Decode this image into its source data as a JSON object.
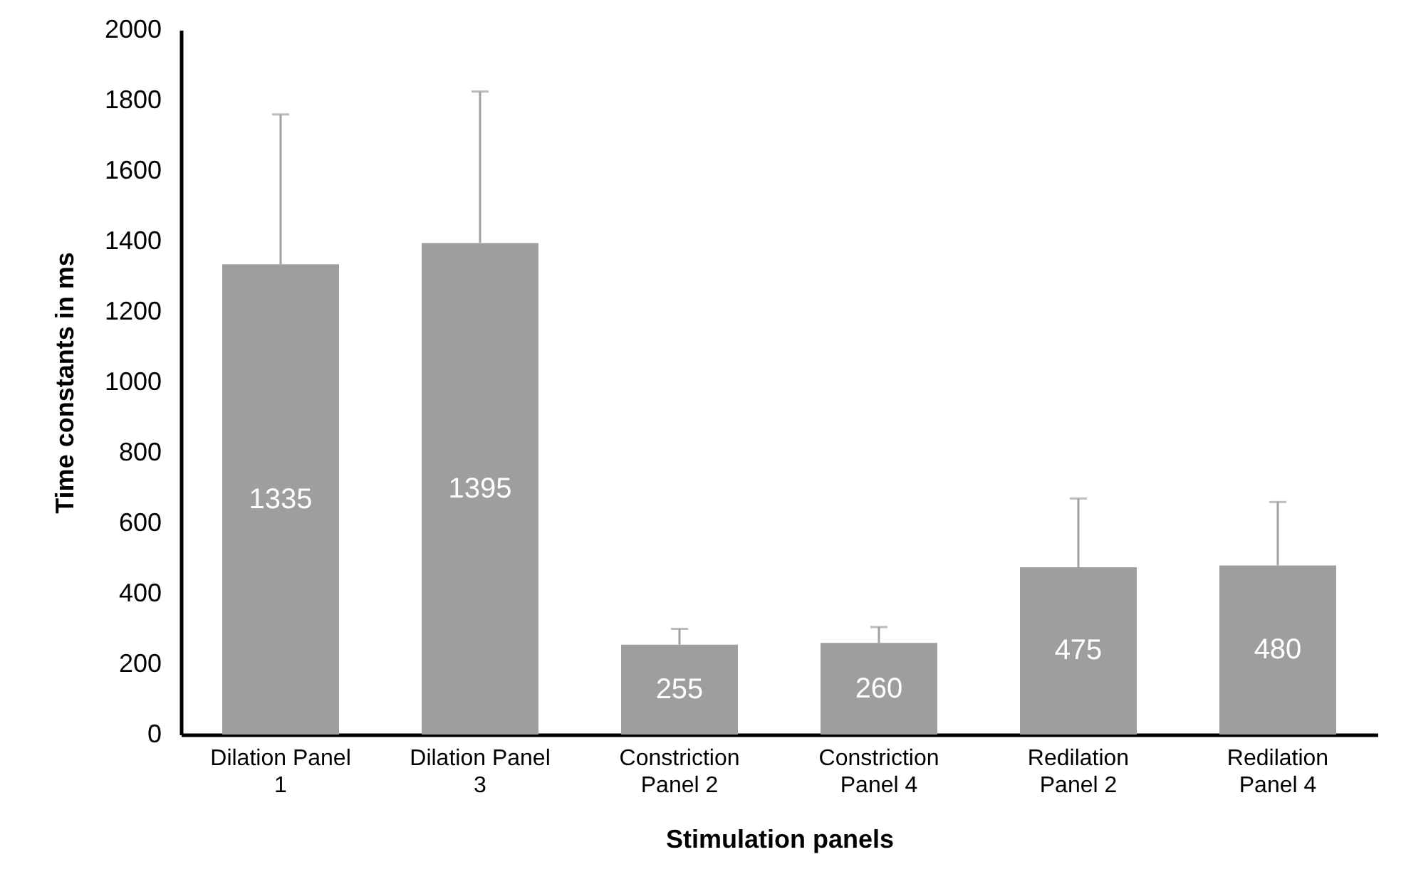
{
  "chart_data": {
    "type": "bar",
    "xlabel": "Stimulation panels",
    "ylabel": "Time constants in ms",
    "categories": [
      "Dilation Panel 1",
      "Dilation Panel 3",
      "Constriction Panel 2",
      "Constriction Panel 4",
      "Redilation Panel 2",
      "Redilation Panel 4"
    ],
    "values": [
      1335,
      1395,
      255,
      260,
      475,
      480
    ],
    "errors": [
      [
        1335,
        1760
      ],
      [
        1395,
        1825
      ],
      [
        255,
        300
      ],
      [
        260,
        305
      ],
      [
        475,
        670
      ],
      [
        480,
        660
      ]
    ],
    "color": "#9e9e9e",
    "data_labels": true,
    "grid": false,
    "ylim": [
      0,
      2000
    ],
    "yticks": [
      0,
      200,
      400,
      600,
      800,
      1000,
      1200,
      1400,
      1600,
      1800,
      2000
    ]
  }
}
